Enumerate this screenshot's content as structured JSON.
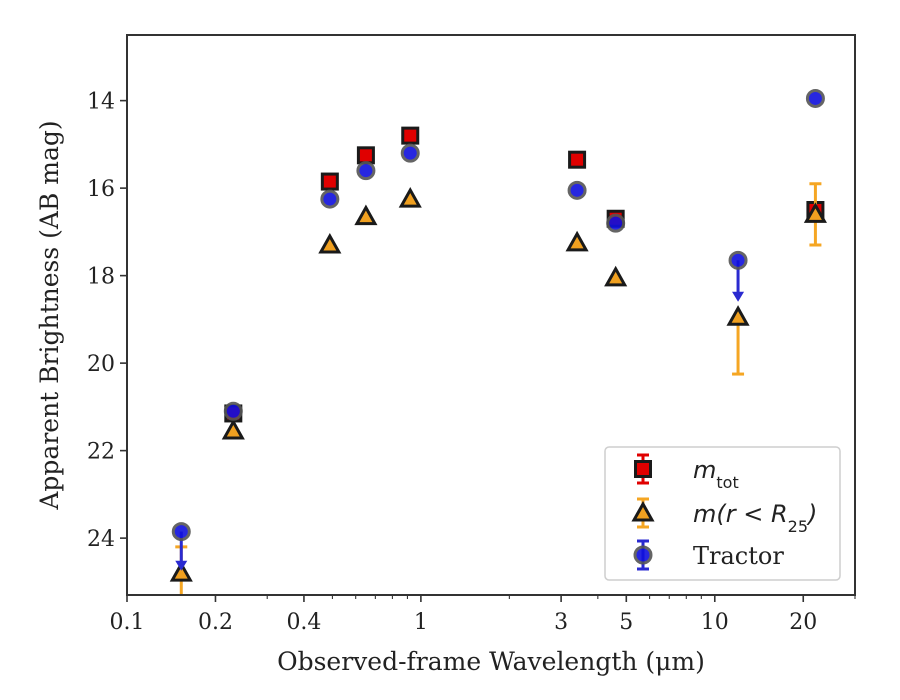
{
  "chart_data": {
    "type": "scatter",
    "title": "",
    "xlabel": "Observed-frame Wavelength (μm)",
    "ylabel": "Apparent Brightness (AB mag)",
    "xscale": "log",
    "xlim": [
      0.1,
      30
    ],
    "ylim": [
      25.3,
      12.5
    ],
    "y_inverted": true,
    "grid": false,
    "legend_position": "lower-right",
    "x_ticks": [
      {
        "value": 0.1,
        "label": "0.1"
      },
      {
        "value": 0.2,
        "label": "0.2"
      },
      {
        "value": 0.4,
        "label": "0.4"
      },
      {
        "value": 1,
        "label": "1"
      },
      {
        "value": 3,
        "label": "3"
      },
      {
        "value": 5,
        "label": "5"
      },
      {
        "value": 10,
        "label": "10"
      },
      {
        "value": 20,
        "label": "20"
      }
    ],
    "y_ticks": [
      {
        "value": 14,
        "label": "14"
      },
      {
        "value": 16,
        "label": "16"
      },
      {
        "value": 18,
        "label": "18"
      },
      {
        "value": 20,
        "label": "20"
      },
      {
        "value": 22,
        "label": "22"
      },
      {
        "value": 24,
        "label": "24"
      }
    ],
    "series": [
      {
        "name": "m_tot",
        "legend_main": "m",
        "legend_sub": "tot",
        "marker": "square",
        "color": "#e00000",
        "edge_color": "#1a1a1a",
        "error_color": "#e00000",
        "points": [
          {
            "x": 0.23,
            "y": 21.15
          },
          {
            "x": 0.49,
            "y": 15.85
          },
          {
            "x": 0.65,
            "y": 15.25
          },
          {
            "x": 0.92,
            "y": 14.8
          },
          {
            "x": 3.4,
            "y": 15.35
          },
          {
            "x": 4.6,
            "y": 16.7
          },
          {
            "x": 22,
            "y": 16.5,
            "yerr": 0.1
          }
        ]
      },
      {
        "name": "m(r < R25)",
        "legend_main": "m(r < R",
        "legend_sub": "25",
        "legend_tail": ")",
        "marker": "triangle",
        "color": "#f0a020",
        "edge_color": "#1a1a1a",
        "error_color": "#f5a623",
        "points": [
          {
            "x": 0.153,
            "y": 24.8,
            "yerr_low": 1.45,
            "yerr_high": 0.6
          },
          {
            "x": 0.23,
            "y": 21.55
          },
          {
            "x": 0.49,
            "y": 17.3
          },
          {
            "x": 0.65,
            "y": 16.65
          },
          {
            "x": 0.92,
            "y": 16.25
          },
          {
            "x": 3.4,
            "y": 17.25
          },
          {
            "x": 4.6,
            "y": 18.05
          },
          {
            "x": 12,
            "y": 18.95,
            "yerr_low": 1.3,
            "yerr_high": 0.0
          },
          {
            "x": 22,
            "y": 16.6,
            "yerr_low": 0.7,
            "yerr_high": 0.7
          }
        ]
      },
      {
        "name": "Tractor",
        "legend_main": "Tractor",
        "marker": "circle",
        "color": "#1010dd",
        "edge_color": "#555555",
        "error_color": "#2a2ad0",
        "points": [
          {
            "x": 0.153,
            "y": 23.85,
            "upper_limit_to": 24.7
          },
          {
            "x": 0.23,
            "y": 21.1
          },
          {
            "x": 0.49,
            "y": 16.25
          },
          {
            "x": 0.65,
            "y": 15.6
          },
          {
            "x": 0.92,
            "y": 15.2
          },
          {
            "x": 3.4,
            "y": 16.05
          },
          {
            "x": 4.6,
            "y": 16.8
          },
          {
            "x": 12,
            "y": 17.65,
            "upper_limit_to": 18.55
          },
          {
            "x": 22,
            "y": 13.95
          }
        ]
      }
    ]
  }
}
